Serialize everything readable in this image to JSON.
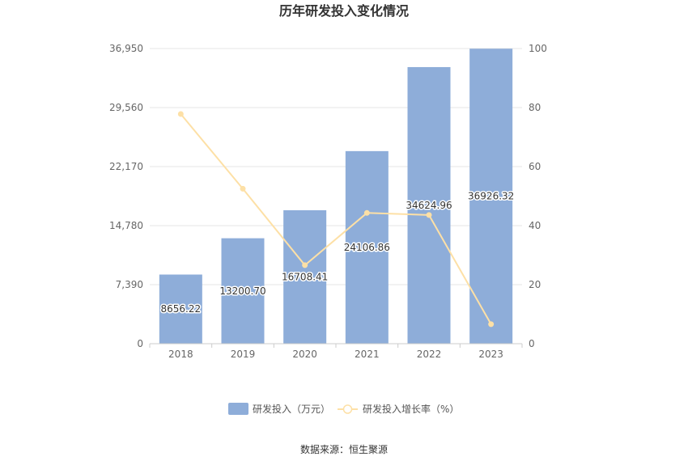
{
  "chart_data": {
    "type": "bar",
    "title": "历年研发投入变化情况",
    "categories": [
      "2018",
      "2019",
      "2020",
      "2021",
      "2022",
      "2023"
    ],
    "series": [
      {
        "name": "研发投入（万元）",
        "type": "bar",
        "axis": "left",
        "values": [
          8656.22,
          13200.7,
          16708.41,
          24106.86,
          34624.96,
          36926.32
        ],
        "labels": [
          "8656.22",
          "13200.70",
          "16708.41",
          "24106.86",
          "34624.96",
          "36926.32"
        ]
      },
      {
        "name": "研发投入增长率（%）",
        "type": "line",
        "axis": "right",
        "values": [
          77.8,
          52.5,
          26.6,
          44.3,
          43.6,
          6.6
        ]
      }
    ],
    "y_left": {
      "ticks": [
        "0",
        "7,390",
        "14,780",
        "22,170",
        "29,560",
        "36,950"
      ],
      "min": 0,
      "max": 36950
    },
    "y_right": {
      "ticks": [
        "0",
        "20",
        "40",
        "60",
        "80",
        "100"
      ],
      "min": 0,
      "max": 100
    },
    "grid": true,
    "legend_position": "bottom-center",
    "colors": {
      "bar": "#8eadd9",
      "line": "#fde0a6",
      "grid": "#e6e6e6",
      "axis": "#cccccc"
    }
  },
  "source": "数据来源：恒生聚源"
}
